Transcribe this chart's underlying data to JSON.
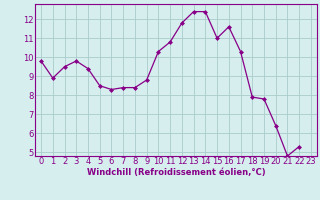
{
  "x": [
    0,
    1,
    2,
    3,
    4,
    5,
    6,
    7,
    8,
    9,
    10,
    11,
    12,
    13,
    14,
    15,
    16,
    17,
    18,
    19,
    20,
    21,
    22,
    23
  ],
  "y": [
    9.8,
    8.9,
    9.5,
    9.8,
    9.4,
    8.5,
    8.3,
    8.4,
    8.4,
    8.8,
    10.3,
    10.8,
    11.8,
    12.4,
    12.4,
    11.0,
    11.6,
    10.3,
    7.9,
    7.8,
    6.4,
    4.8,
    5.3,
    null
  ],
  "ylim": [
    4.8,
    12.8
  ],
  "yticks": [
    5,
    6,
    7,
    8,
    9,
    10,
    11,
    12
  ],
  "xticks": [
    0,
    1,
    2,
    3,
    4,
    5,
    6,
    7,
    8,
    9,
    10,
    11,
    12,
    13,
    14,
    15,
    16,
    17,
    18,
    19,
    20,
    21,
    22,
    23
  ],
  "xlabel": "Windchill (Refroidissement éolien,°C)",
  "line_color": "#880088",
  "marker": "D",
  "marker_size": 2,
  "bg_color": "#d6eeee",
  "grid_color": "#aacccc",
  "tick_fontsize": 6,
  "xlabel_fontsize": 6
}
